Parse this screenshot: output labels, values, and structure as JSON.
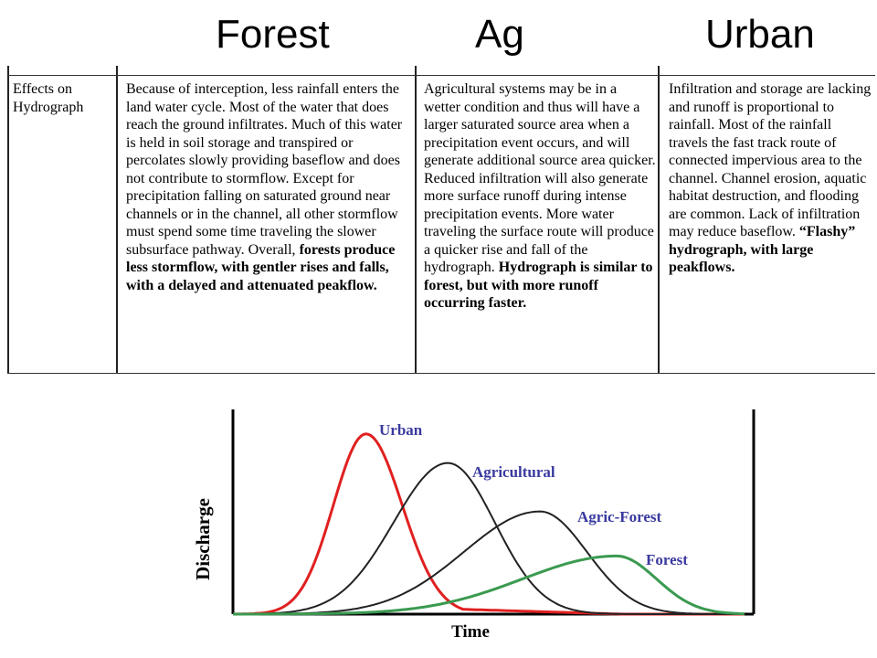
{
  "headers": {
    "forest": "Forest",
    "ag": "Ag",
    "urban": "Urban"
  },
  "table": {
    "row_label": "Effects on Hydrograph",
    "forest": {
      "plain": "Because of interception, less rainfall enters the land water cycle.  Most of the water that does reach the ground infiltrates. Much of this water is held in soil storage and transpired or percolates slowly providing baseflow and does not contribute to stormflow.  Except for precipitation falling on saturated ground near channels or in the channel, all other stormflow must spend some time traveling the slower subsurface pathway. Overall, ",
      "bold": "forests produce less stormflow, with gentler rises and falls, with a delayed and attenuated peakflow."
    },
    "ag": {
      "plain": "Agricultural systems may be in a wetter condition and thus will have a larger saturated source area when a precipitation event occurs, and will generate additional source area quicker. Reduced infiltration will also generate more surface runoff during intense precipitation events. More water traveling the surface route will produce a quicker rise and fall of the hydrograph.  ",
      "bold": "Hydrograph is similar to forest, but with more runoff occurring faster."
    },
    "urban": {
      "plain": "Infiltration and storage are lacking and runoff is proportional to rainfall. Most of the rainfall travels the fast track route of connected impervious area to the channel. Channel erosion, aquatic habitat destruction, and flooding are common. Lack of infiltration may reduce baseflow.  ",
      "bold": "“Flashy” hydrograph, with large peakflows."
    }
  },
  "hydrograph": {
    "x_label": "Time",
    "y_label": "Discharge",
    "colors": {
      "urban": "#e02020",
      "agricultural": "#222222",
      "agric_forest": "#222222",
      "forest": "#3a9a50",
      "axis": "#000000"
    },
    "curves": [
      {
        "id": "urban",
        "label": "Urban",
        "t_start": 0.0,
        "t_peak": 0.26,
        "peak": 0.93,
        "rise_width": 0.09,
        "fall_width": 0.1,
        "base": 0.04
      },
      {
        "id": "agricultural",
        "label": "Agricultural",
        "t_start": 0.0,
        "t_peak": 0.42,
        "peak": 0.78,
        "rise_width": 0.15,
        "fall_width": 0.13,
        "base": 0.0
      },
      {
        "id": "agric_forest",
        "label": "Agric-Forest",
        "t_start": 0.0,
        "t_peak": 0.6,
        "peak": 0.53,
        "rise_width": 0.21,
        "fall_width": 0.13,
        "base": 0.0
      },
      {
        "id": "forest",
        "label": "Forest",
        "t_start": 0.0,
        "t_peak": 0.75,
        "peak": 0.3,
        "rise_width": 0.26,
        "fall_width": 0.11,
        "base": 0.0
      }
    ]
  }
}
